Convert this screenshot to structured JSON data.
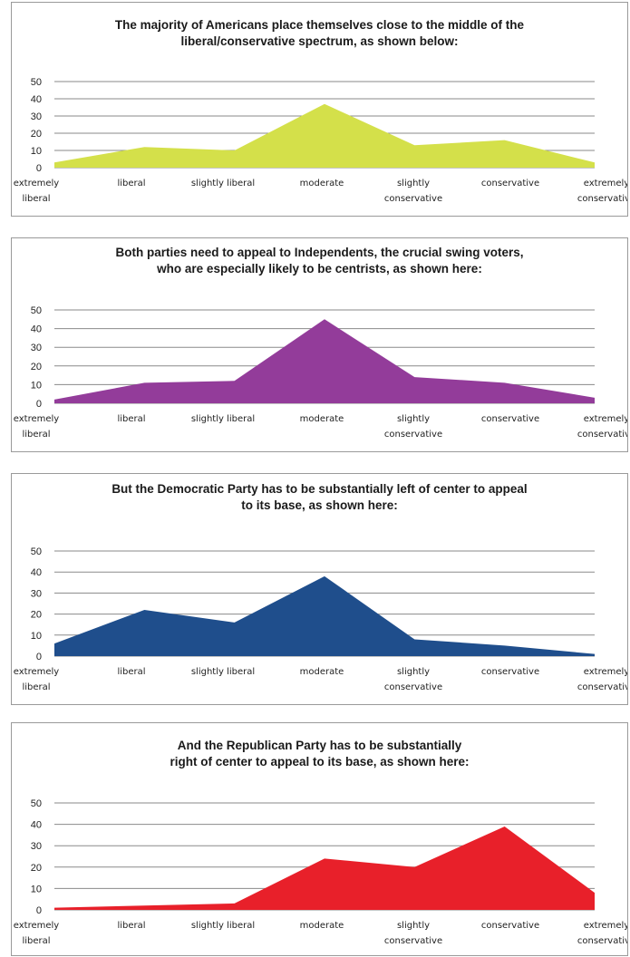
{
  "chart_data": [
    {
      "type": "area",
      "title": "The majority of Americans place themselves close to the middle of the\nliberal/conservative spectrum, as shown below:",
      "categories": [
        "extremely\nliberal",
        "liberal",
        "slightly liberal",
        "moderate",
        "slightly\nconservative",
        "conservative",
        "extremely\nconservative"
      ],
      "values": [
        3,
        12,
        10,
        37,
        13,
        16,
        3
      ],
      "yticks": [
        0,
        10,
        20,
        30,
        40,
        50
      ],
      "ylim": [
        0,
        50
      ],
      "grid": true,
      "color": "#d4e04a"
    },
    {
      "type": "area",
      "title": "Both parties need to appeal to Independents, the crucial swing voters,\nwho are especially likely to be centrists, as shown here:",
      "categories": [
        "extremely\nliberal",
        "liberal",
        "slightly liberal",
        "moderate",
        "slightly\nconservative",
        "conservative",
        "extremely\nconservative"
      ],
      "values": [
        2,
        11,
        12,
        45,
        14,
        11,
        3
      ],
      "yticks": [
        0,
        10,
        20,
        30,
        40,
        50
      ],
      "ylim": [
        0,
        50
      ],
      "grid": true,
      "color": "#933c9a"
    },
    {
      "type": "area",
      "title": "But the Democratic Party has to be substantially left of center to appeal\nto its base, as shown here:",
      "categories": [
        "extremely\nliberal",
        "liberal",
        "slightly liberal",
        "moderate",
        "slightly\nconservative",
        "conservative",
        "extremely\nconservative"
      ],
      "values": [
        6,
        22,
        16,
        38,
        8,
        5,
        1
      ],
      "yticks": [
        0,
        10,
        20,
        30,
        40,
        50
      ],
      "ylim": [
        0,
        50
      ],
      "grid": true,
      "color": "#1f4e8c"
    },
    {
      "type": "area",
      "title": "And the Republican Party has to be substantially\nright of center to appeal to its base, as shown here:",
      "categories": [
        "extremely\nliberal",
        "liberal",
        "slightly liberal",
        "moderate",
        "slightly\nconservative",
        "conservative",
        "extremely\nconservative"
      ],
      "values": [
        1,
        2,
        3,
        24,
        20,
        39,
        8
      ],
      "yticks": [
        0,
        10,
        20,
        30,
        40,
        50
      ],
      "ylim": [
        0,
        50
      ],
      "grid": true,
      "color": "#e8202a"
    }
  ]
}
